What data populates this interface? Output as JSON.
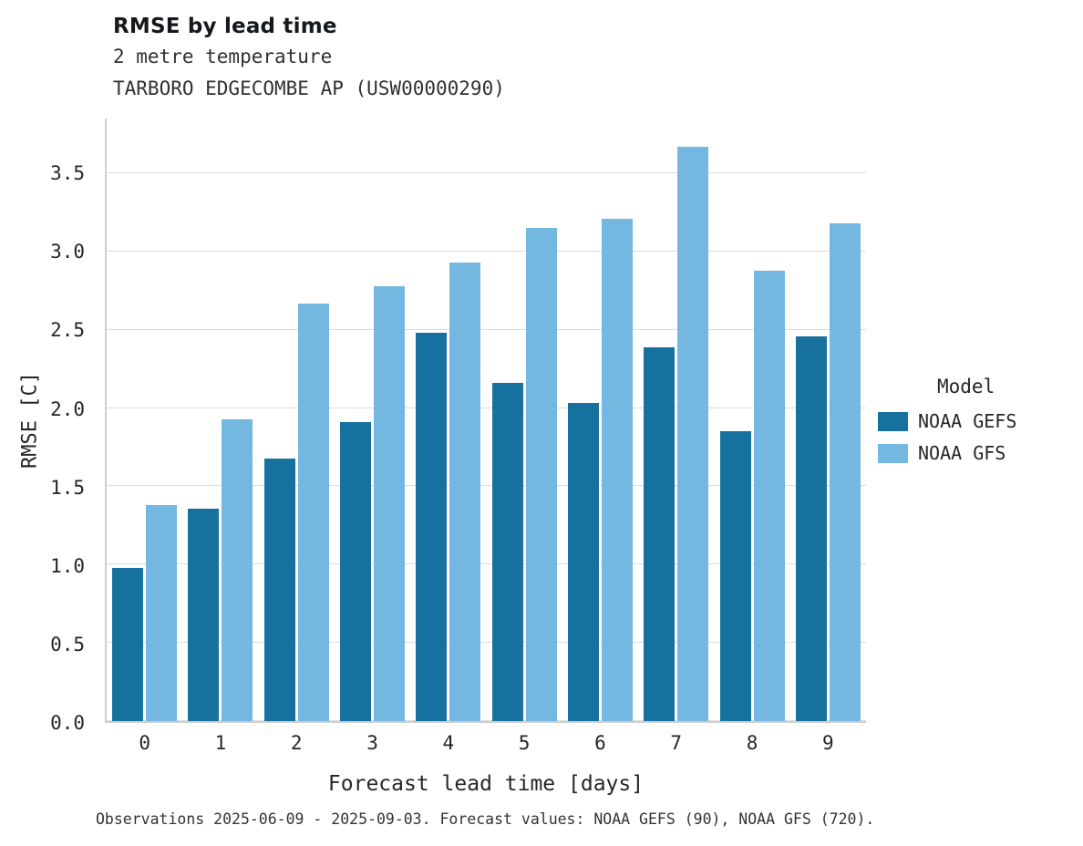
{
  "title": "RMSE by lead time",
  "subtitle_variable": "2 metre temperature",
  "subtitle_station": "TARBORO EDGECOMBE AP (USW00000290)",
  "caption": "Observations 2025-06-09 - 2025-09-03. Forecast values: NOAA GEFS (90), NOAA GFS (720).",
  "colors": {
    "gefs_dark_blue": "#17719f",
    "gfs_light_blue": "#74b7e0",
    "gridline": "#dcdcdc",
    "text": "#262626"
  },
  "legend": {
    "title": "Model",
    "entries": [
      {
        "label": "NOAA GEFS",
        "color": "#17719f"
      },
      {
        "label": "NOAA GFS",
        "color": "#74b7e0"
      }
    ]
  },
  "chart_data": {
    "type": "bar",
    "title": "RMSE by lead time",
    "xlabel": "Forecast lead time [days]",
    "ylabel": "RMSE [C]",
    "categories": [
      0,
      1,
      2,
      3,
      4,
      5,
      6,
      7,
      8,
      9
    ],
    "series": [
      {
        "name": "NOAA GEFS",
        "color": "#17719f",
        "values": [
          0.98,
          1.36,
          1.68,
          1.91,
          2.48,
          2.16,
          2.03,
          2.39,
          1.85,
          2.46
        ]
      },
      {
        "name": "NOAA GFS",
        "color": "#74b7e0",
        "values": [
          1.38,
          1.93,
          2.67,
          2.78,
          2.93,
          3.15,
          3.21,
          3.67,
          2.88,
          3.18
        ]
      }
    ],
    "ylim": [
      0,
      3.85
    ],
    "yticks": [
      0.0,
      0.5,
      1.0,
      1.5,
      2.0,
      2.5,
      3.0,
      3.5
    ],
    "grid": true,
    "legend_position": "right"
  }
}
